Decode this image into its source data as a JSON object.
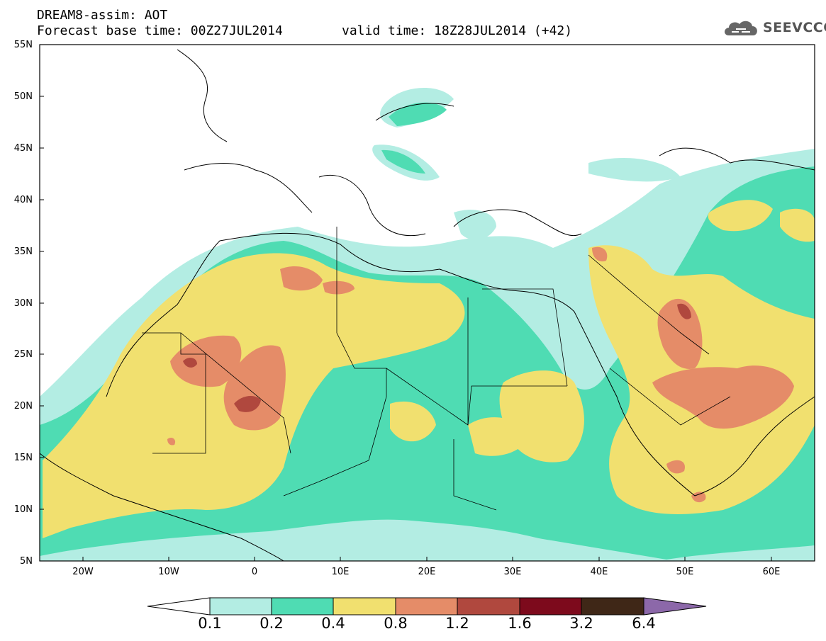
{
  "header": {
    "title_line1": "DREAM8-assim: AOT",
    "title_line2": "Forecast base time: 00Z27JUL2014",
    "valid_time": "valid time: 18Z28JUL2014 (+42)",
    "logo_text": "SEEVCCC"
  },
  "map": {
    "projection": "lat-lon",
    "lat_range": [
      5,
      55
    ],
    "lon_range": [
      -25,
      65
    ],
    "lat_labels": [
      "55N",
      "50N",
      "45N",
      "40N",
      "35N",
      "30N",
      "25N",
      "20N",
      "15N",
      "10N",
      "5N"
    ],
    "lon_labels": [
      "20W",
      "10W",
      "0",
      "10E",
      "20E",
      "30E",
      "40E",
      "50E",
      "60E"
    ],
    "background_color": "#ffffff"
  },
  "legend": {
    "labels": [
      "0.1",
      "0.2",
      "0.4",
      "0.8",
      "1.2",
      "1.6",
      "3.2",
      "6.4"
    ],
    "colors": [
      "#ffffff",
      "#b3ede3",
      "#4fdcb3",
      "#f1e06f",
      "#e58c68",
      "#b0483e",
      "#7d0a1c",
      "#3f2717",
      "#8c68a9"
    ]
  }
}
